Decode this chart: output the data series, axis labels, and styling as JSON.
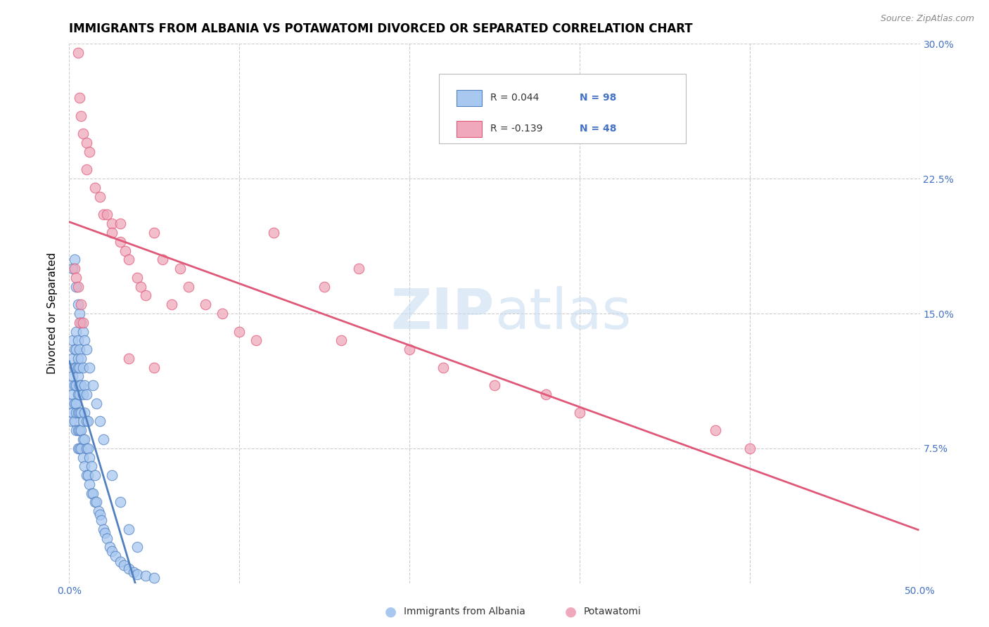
{
  "title": "IMMIGRANTS FROM ALBANIA VS POTAWATOMI DIVORCED OR SEPARATED CORRELATION CHART",
  "source": "Source: ZipAtlas.com",
  "ylabel": "Divorced or Separated",
  "xlim": [
    0.0,
    0.5
  ],
  "ylim": [
    0.0,
    0.3
  ],
  "color_albania": "#a8c8f0",
  "color_potawatomi": "#f0a8bc",
  "color_line_albania": "#5080c0",
  "color_line_potawatomi": "#e05878",
  "color_dashed": "#90b8e0",
  "watermark": "ZIPatlas",
  "albania_x": [
    0.001,
    0.001,
    0.001,
    0.002,
    0.002,
    0.002,
    0.002,
    0.002,
    0.003,
    0.003,
    0.003,
    0.003,
    0.003,
    0.004,
    0.004,
    0.004,
    0.004,
    0.004,
    0.004,
    0.004,
    0.005,
    0.005,
    0.005,
    0.005,
    0.005,
    0.005,
    0.005,
    0.005,
    0.006,
    0.006,
    0.006,
    0.006,
    0.006,
    0.006,
    0.006,
    0.007,
    0.007,
    0.007,
    0.007,
    0.007,
    0.008,
    0.008,
    0.008,
    0.008,
    0.008,
    0.009,
    0.009,
    0.009,
    0.009,
    0.01,
    0.01,
    0.01,
    0.01,
    0.011,
    0.011,
    0.011,
    0.012,
    0.012,
    0.013,
    0.013,
    0.014,
    0.015,
    0.015,
    0.016,
    0.017,
    0.018,
    0.019,
    0.02,
    0.021,
    0.022,
    0.024,
    0.025,
    0.027,
    0.03,
    0.032,
    0.035,
    0.038,
    0.04,
    0.045,
    0.05,
    0.002,
    0.003,
    0.004,
    0.005,
    0.006,
    0.007,
    0.008,
    0.009,
    0.01,
    0.012,
    0.014,
    0.016,
    0.018,
    0.02,
    0.025,
    0.03,
    0.035,
    0.04
  ],
  "albania_y": [
    0.09,
    0.1,
    0.11,
    0.095,
    0.105,
    0.115,
    0.125,
    0.135,
    0.09,
    0.1,
    0.11,
    0.12,
    0.13,
    0.085,
    0.095,
    0.1,
    0.11,
    0.12,
    0.13,
    0.14,
    0.075,
    0.085,
    0.095,
    0.105,
    0.115,
    0.12,
    0.125,
    0.135,
    0.075,
    0.085,
    0.095,
    0.105,
    0.11,
    0.12,
    0.13,
    0.075,
    0.085,
    0.095,
    0.11,
    0.125,
    0.07,
    0.08,
    0.09,
    0.105,
    0.12,
    0.065,
    0.08,
    0.095,
    0.11,
    0.06,
    0.075,
    0.09,
    0.105,
    0.06,
    0.075,
    0.09,
    0.055,
    0.07,
    0.05,
    0.065,
    0.05,
    0.045,
    0.06,
    0.045,
    0.04,
    0.038,
    0.035,
    0.03,
    0.028,
    0.025,
    0.02,
    0.018,
    0.015,
    0.012,
    0.01,
    0.008,
    0.006,
    0.005,
    0.004,
    0.003,
    0.175,
    0.18,
    0.165,
    0.155,
    0.15,
    0.145,
    0.14,
    0.135,
    0.13,
    0.12,
    0.11,
    0.1,
    0.09,
    0.08,
    0.06,
    0.045,
    0.03,
    0.02
  ],
  "potawatomi_x": [
    0.005,
    0.006,
    0.007,
    0.008,
    0.01,
    0.01,
    0.012,
    0.015,
    0.018,
    0.02,
    0.022,
    0.025,
    0.025,
    0.03,
    0.03,
    0.033,
    0.035,
    0.04,
    0.042,
    0.045,
    0.05,
    0.055,
    0.06,
    0.065,
    0.07,
    0.08,
    0.09,
    0.1,
    0.11,
    0.12,
    0.15,
    0.16,
    0.17,
    0.2,
    0.22,
    0.25,
    0.28,
    0.3,
    0.38,
    0.4,
    0.003,
    0.004,
    0.005,
    0.006,
    0.007,
    0.008,
    0.035,
    0.05
  ],
  "potawatomi_y": [
    0.295,
    0.27,
    0.26,
    0.25,
    0.245,
    0.23,
    0.24,
    0.22,
    0.215,
    0.205,
    0.205,
    0.2,
    0.195,
    0.19,
    0.2,
    0.185,
    0.18,
    0.17,
    0.165,
    0.16,
    0.195,
    0.18,
    0.155,
    0.175,
    0.165,
    0.155,
    0.15,
    0.14,
    0.135,
    0.195,
    0.165,
    0.135,
    0.175,
    0.13,
    0.12,
    0.11,
    0.105,
    0.095,
    0.085,
    0.075,
    0.175,
    0.17,
    0.165,
    0.145,
    0.155,
    0.145,
    0.125,
    0.12
  ]
}
